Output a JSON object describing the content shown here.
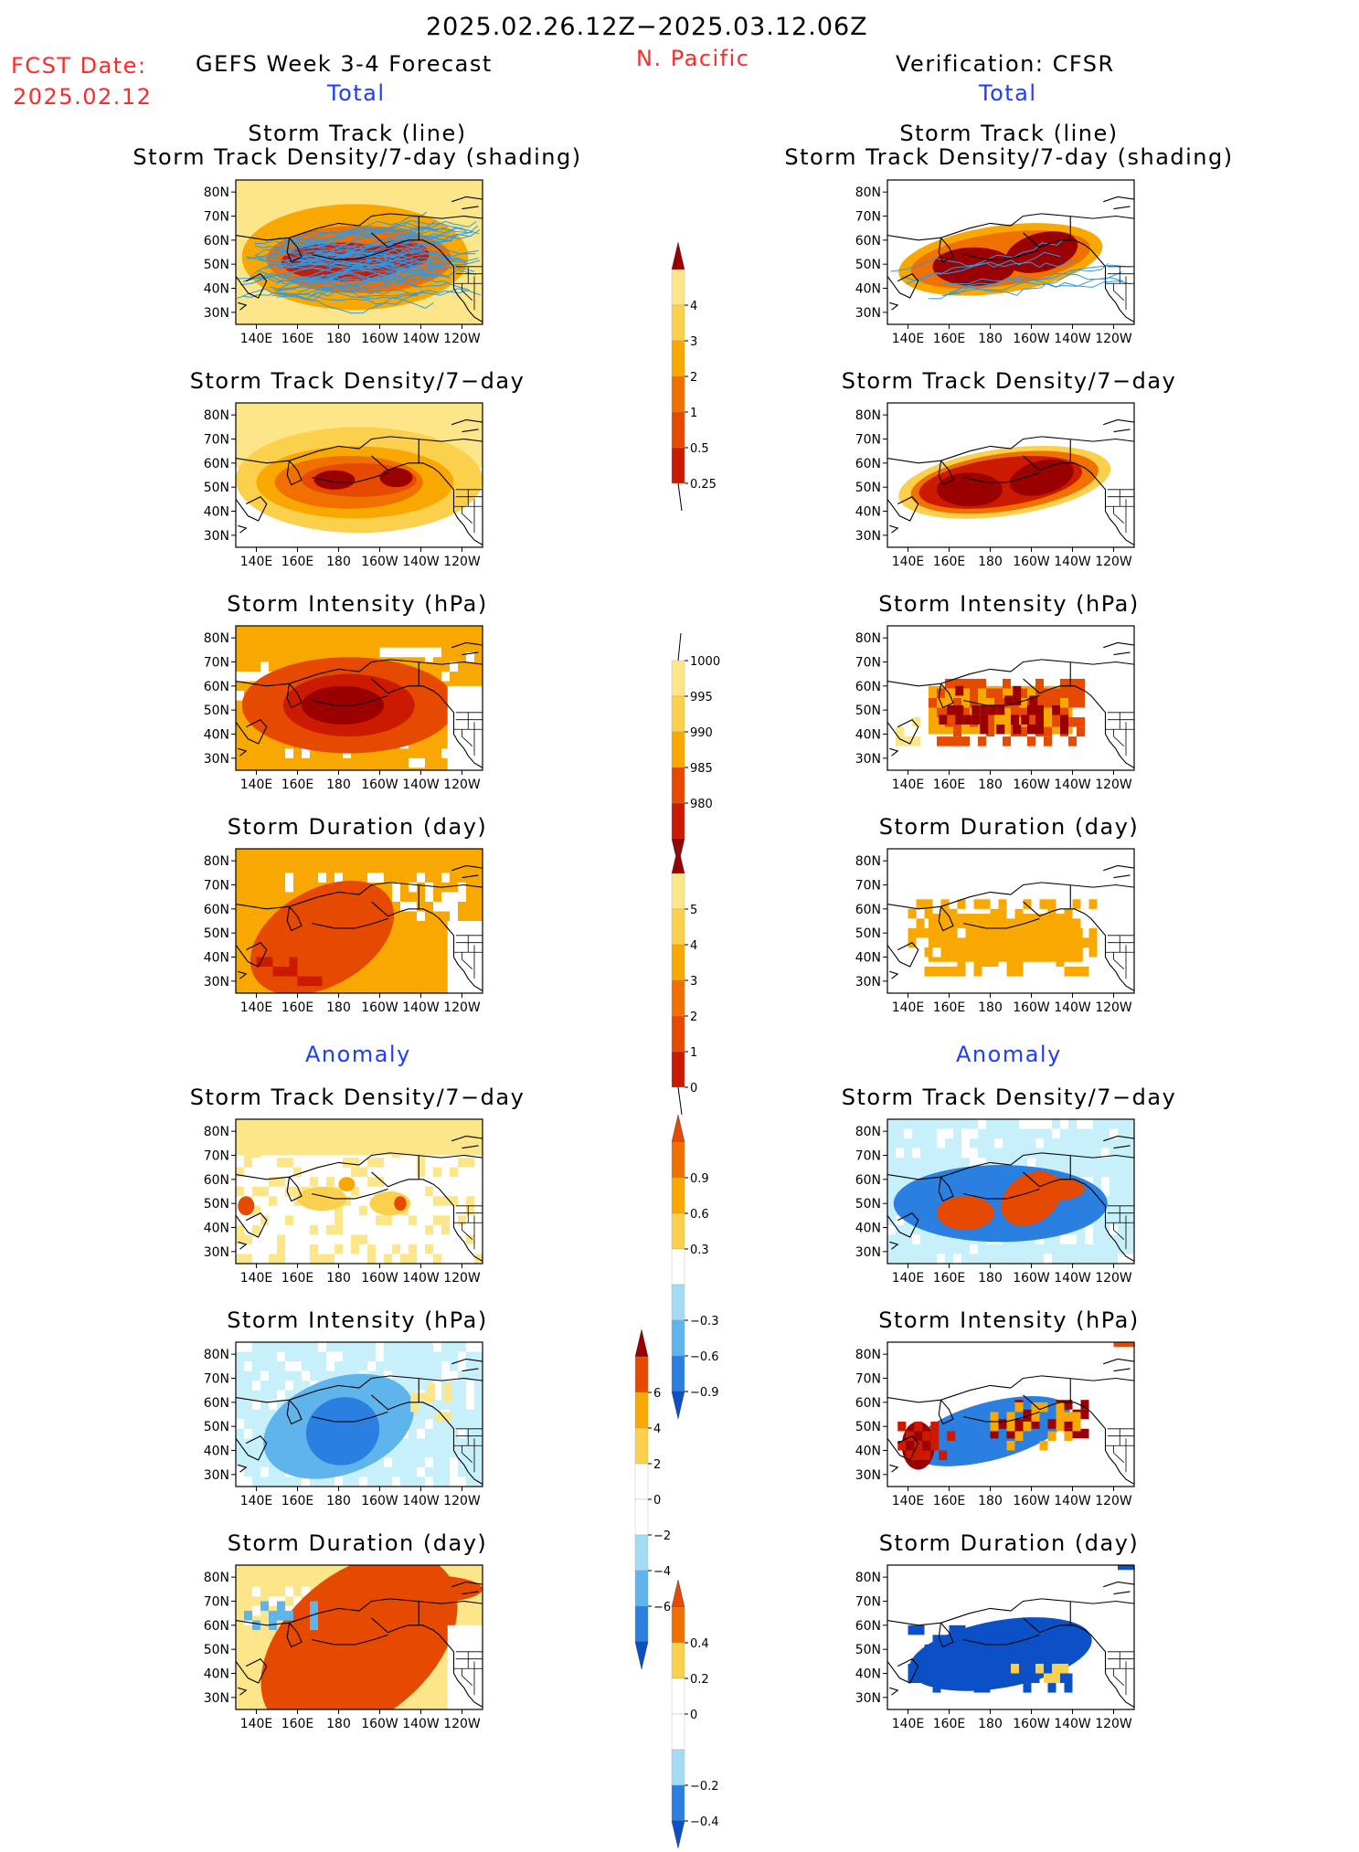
{
  "header": {
    "date_range": "2025.02.26.12Z−2025.03.12.06Z",
    "region": "N. Pacific",
    "fcst_label": "FCST Date:",
    "fcst_date": "2025.02.12",
    "left_title": "GEFS Week 3-4 Forecast",
    "right_title": "Verification: CFSR",
    "total_left": "Total",
    "total_right": "Total",
    "anomaly_left": "Anomaly",
    "anomaly_right": "Anomaly"
  },
  "panel_titles": {
    "track": [
      "Storm Track (line)",
      "Storm Track Density/7-day (shading)"
    ],
    "density": "Storm Track Density/7−day",
    "intensity": "Storm Intensity (hPa)",
    "duration": "Storm Duration (day)"
  },
  "axes": {
    "lat_labels": [
      "80N",
      "70N",
      "60N",
      "50N",
      "40N",
      "30N"
    ],
    "lon_labels": [
      "140E",
      "160E",
      "180",
      "160W",
      "140W",
      "120W"
    ]
  },
  "colorbars": {
    "density_total": [
      "0.25",
      "0.5",
      "1",
      "2",
      "3",
      "4"
    ],
    "intensity_total": [
      "1000",
      "995",
      "990",
      "985",
      "980"
    ],
    "duration_total": [
      "0",
      "1",
      "2",
      "3",
      "4",
      "5"
    ],
    "density_anom": [
      "0.9",
      "0.6",
      "0.3",
      "−0.3",
      "−0.6",
      "−0.9"
    ],
    "intensity_anom": [
      "6",
      "4",
      "2",
      "0",
      "−2",
      "−4",
      "−6"
    ],
    "duration_anom": [
      "0.4",
      "0.2",
      "0",
      "−0.2",
      "−0.4"
    ]
  },
  "colors": {
    "warm": [
      "#fff5a0",
      "#fde68a",
      "#fbd04c",
      "#f8a800",
      "#f07000",
      "#e54a00",
      "#cc1a00",
      "#9a0000"
    ],
    "cool": [
      "#c8f0fa",
      "#a2dcf4",
      "#5fb4ec",
      "#2a7fe0",
      "#0c50c8"
    ],
    "track_line": "#2e9ae6"
  }
}
